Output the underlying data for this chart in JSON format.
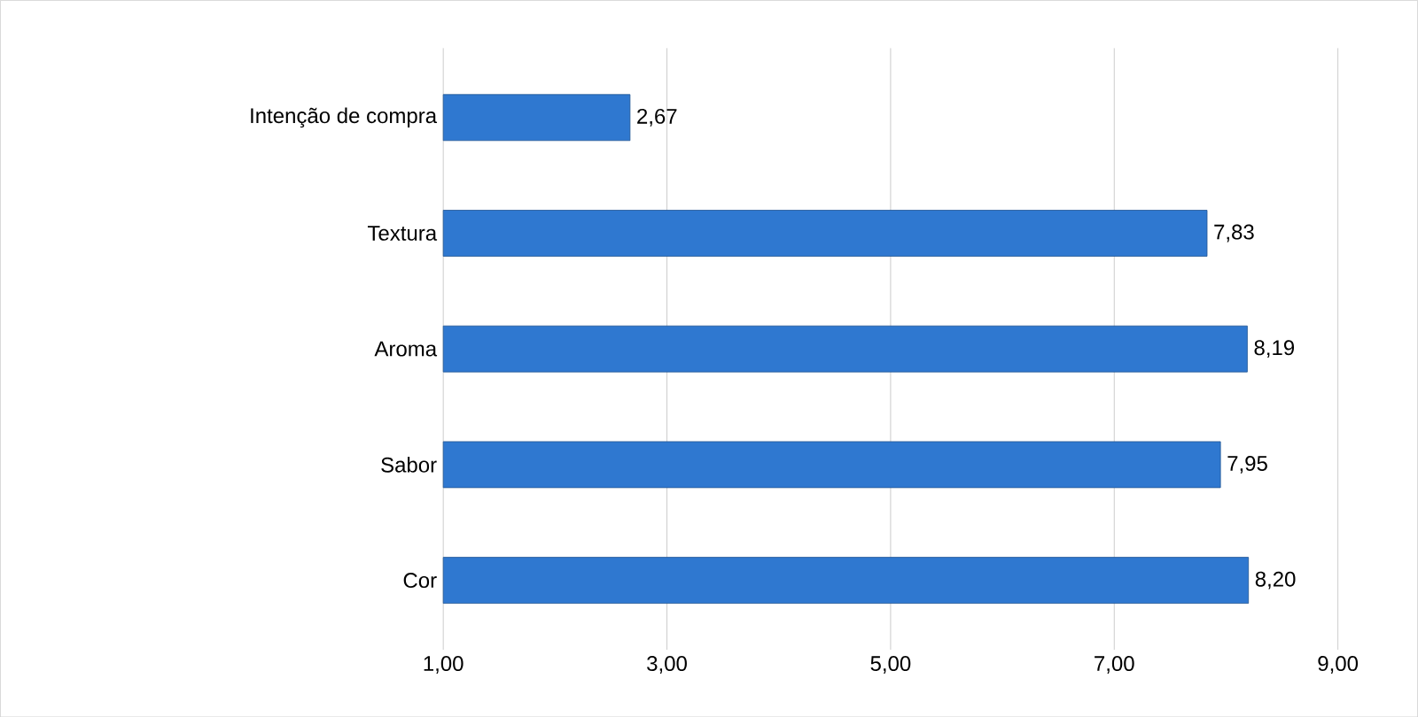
{
  "chart_data": {
    "type": "bar",
    "orientation": "horizontal",
    "categories": [
      "Intenção de compra",
      "Textura",
      "Aroma",
      "Sabor",
      "Cor"
    ],
    "values": [
      2.67,
      7.83,
      8.19,
      7.95,
      8.2
    ],
    "value_labels": [
      "2,67",
      "7,83",
      "8,19",
      "7,95",
      "8,20"
    ],
    "color": "#2f78d0",
    "xlim": [
      1,
      9
    ],
    "xticks": [
      {
        "value": 1,
        "label": "1,00"
      },
      {
        "value": 3,
        "label": "3,00"
      },
      {
        "value": 5,
        "label": "5,00"
      },
      {
        "value": 7,
        "label": "7,00"
      },
      {
        "value": 9,
        "label": "9,00"
      }
    ],
    "grid": "x"
  }
}
